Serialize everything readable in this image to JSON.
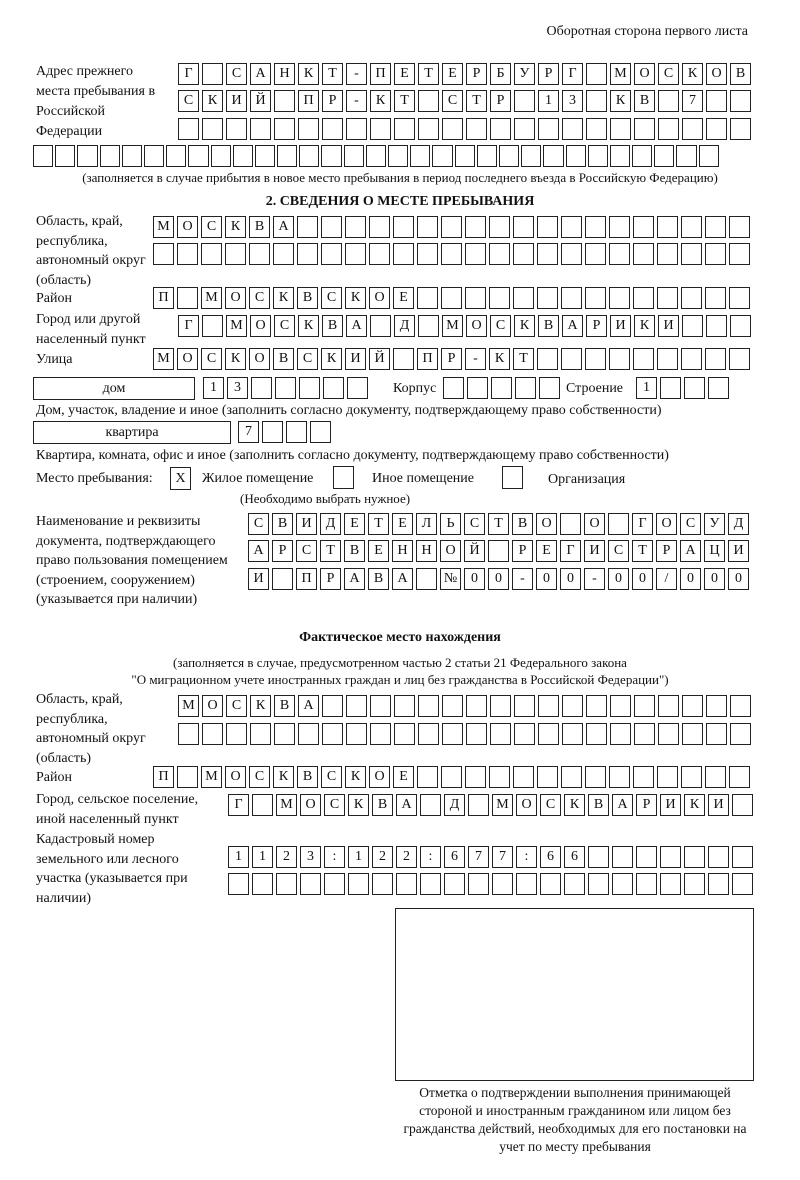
{
  "header": "Оборотная сторона первого листа",
  "previous_address": {
    "label": "Адрес прежнего места пребывания в Российской Федерации",
    "rows": [
      [
        "Г",
        "",
        "С",
        "А",
        "Н",
        "К",
        "Т",
        "-",
        "П",
        "Е",
        "Т",
        "Е",
        "Р",
        "Б",
        "У",
        "Р",
        "Г",
        "",
        "М",
        "О",
        "С",
        "К",
        "О",
        "В"
      ],
      [
        "С",
        "К",
        "И",
        "Й",
        "",
        "П",
        "Р",
        "-",
        "К",
        "Т",
        "",
        "С",
        "Т",
        "Р",
        "",
        "1",
        "3",
        "",
        "К",
        "В",
        "",
        "7",
        "",
        ""
      ],
      [],
      []
    ],
    "note": "(заполняется в случае прибытия в новое место пребывания в период последнего въезда в Российскую Федерацию)"
  },
  "section2": {
    "title": "2. СВЕДЕНИЯ О МЕСТЕ ПРЕБЫВАНИЯ",
    "region_label": "Область, край, республика, автономный округ (область)",
    "region_rows": [
      [
        "М",
        "О",
        "С",
        "К",
        "В",
        "А"
      ],
      []
    ],
    "district_label": "Район",
    "district": [
      "П",
      "",
      "М",
      "О",
      "С",
      "К",
      "В",
      "С",
      "К",
      "О",
      "Е"
    ],
    "city_label": "Город или другой населенный пункт",
    "city": [
      "Г",
      "",
      "М",
      "О",
      "С",
      "К",
      "В",
      "А",
      "",
      "Д",
      "",
      "М",
      "О",
      "С",
      "К",
      "В",
      "А",
      "Р",
      "И",
      "К",
      "И"
    ],
    "street_label": "Улица",
    "street": [
      "М",
      "О",
      "С",
      "К",
      "О",
      "В",
      "С",
      "К",
      "И",
      "Й",
      "",
      "П",
      "Р",
      "-",
      "К",
      "Т"
    ],
    "house_type": "дом",
    "house": [
      "1",
      "3"
    ],
    "korpus_label": "Корпус",
    "korpus": [],
    "building_label": "Строение",
    "building": [
      "1"
    ],
    "house_note": "Дом, участок, владение и иное (заполнить согласно документу, подтверждающему право собственности)",
    "apartment_type": "квартира",
    "apartment": [
      "7"
    ],
    "apartment_note": "Квартира, комната, офис и иное (заполнить согласно документу, подтверждающему право собственности)",
    "place_label": "Место пребывания:",
    "place_options": [
      {
        "label": "Жилое помещение",
        "mark": "X",
        "checked": true
      },
      {
        "label": "Иное помещение",
        "mark": "",
        "checked": false
      },
      {
        "label": "Организация",
        "mark": "",
        "checked": false
      }
    ],
    "place_note": "(Необходимо выбрать нужное)",
    "document_label": "Наименование и реквизиты документа, подтверждающего право пользования помещением (строением, сооружением) (указывается при наличии)",
    "document_rows": [
      [
        "С",
        "В",
        "И",
        "Д",
        "Е",
        "Т",
        "Е",
        "Л",
        "Ь",
        "С",
        "Т",
        "В",
        "О",
        "",
        "О",
        "",
        "Г",
        "О",
        "С",
        "У",
        "Д"
      ],
      [
        "А",
        "Р",
        "С",
        "Т",
        "В",
        "Е",
        "Н",
        "Н",
        "О",
        "Й",
        "",
        "Р",
        "Е",
        "Г",
        "И",
        "С",
        "Т",
        "Р",
        "А",
        "Ц",
        "И"
      ],
      [
        "И",
        "",
        "П",
        "Р",
        "А",
        "В",
        "А",
        "",
        "№",
        "0",
        "0",
        "-",
        "0",
        "0",
        "-",
        "0",
        "0",
        "/",
        "0",
        "0",
        "0"
      ]
    ]
  },
  "actual_location": {
    "title": "Фактическое место нахождения",
    "note_line1": "(заполняется в случае, предусмотренном частью 2 статьи 21 Федерального закона",
    "note_line2": "\"О миграционном учете иностранных граждан и лиц без гражданства в Российской Федерации\")",
    "region_label": "Область, край, республика, автономный округ (область)",
    "region_rows": [
      [
        "М",
        "О",
        "С",
        "К",
        "В",
        "А"
      ],
      []
    ],
    "district_label": "Район",
    "district": [
      "П",
      "",
      "М",
      "О",
      "С",
      "К",
      "В",
      "С",
      "К",
      "О",
      "Е"
    ],
    "city_label": "Город, сельское поселение, иной населенный пункт",
    "city": [
      "Г",
      "",
      "М",
      "О",
      "С",
      "К",
      "В",
      "А",
      "",
      "Д",
      "",
      "М",
      "О",
      "С",
      "К",
      "В",
      "А",
      "Р",
      "И",
      "К",
      "И"
    ],
    "cadastral_label": "Кадастровый номер земельного или лесного участка (указывается при наличии)",
    "cadastral_rows": [
      [
        "1",
        "1",
        "2",
        "3",
        ":",
        "1",
        "2",
        "2",
        ":",
        "6",
        "7",
        "7",
        ":",
        "6",
        "6"
      ],
      []
    ]
  },
  "confirmation": {
    "caption": "Отметка о подтверждении выполнения принимающей стороной и иностранным гражданином или лицом без гражданства действий, необходимых для его постановки на учет по месту пребывания"
  }
}
